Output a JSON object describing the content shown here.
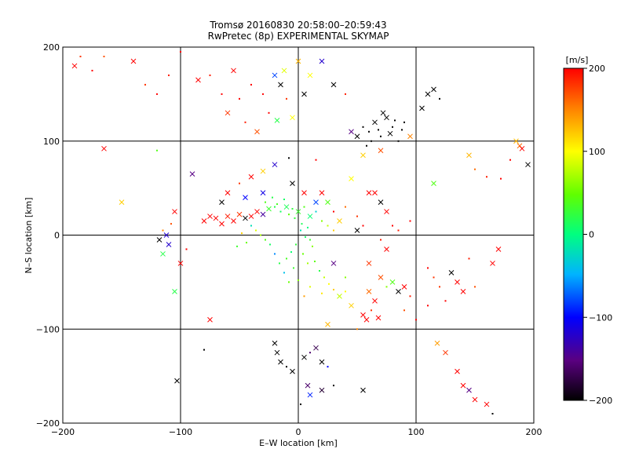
{
  "chart_data": {
    "type": "scatter",
    "title": "Tromsø 20160830 20:58:00–20:59:43",
    "subtitle": "RwPretec (8p) EXPERIMENTAL SKYMAP",
    "xlabel": "E–W location [km]",
    "ylabel": "N–S location [km]",
    "xlim": [
      -200,
      200
    ],
    "ylim": [
      -200,
      200
    ],
    "x_ticks": [
      -200,
      -100,
      0,
      100,
      200
    ],
    "y_ticks": [
      -200,
      -100,
      0,
      100,
      200
    ],
    "x_tick_labels": [
      "−200",
      "−100",
      "0",
      "100",
      "200"
    ],
    "y_tick_labels": [
      "−200",
      "−100",
      "0",
      "100",
      "200"
    ],
    "grid": true,
    "colorbar": {
      "label": "[m/s]",
      "min": -200,
      "max": 200,
      "ticks": [
        -200,
        -100,
        0,
        100,
        200
      ],
      "tick_labels": [
        "−200",
        "−100",
        "0",
        "100",
        "200"
      ],
      "colormap": "rainbow"
    },
    "marker_styles": [
      "dot",
      "x"
    ],
    "points": [
      [
        -190,
        180,
        200,
        "x"
      ],
      [
        -185,
        190,
        180,
        "dot"
      ],
      [
        -175,
        175,
        200,
        "dot"
      ],
      [
        -165,
        190,
        170,
        "dot"
      ],
      [
        -140,
        185,
        200,
        "x"
      ],
      [
        -130,
        160,
        180,
        "dot"
      ],
      [
        -120,
        150,
        200,
        "dot"
      ],
      [
        -110,
        170,
        190,
        "dot"
      ],
      [
        -100,
        195,
        200,
        "dot"
      ],
      [
        -85,
        165,
        200,
        "x"
      ],
      [
        -75,
        170,
        190,
        "dot"
      ],
      [
        -65,
        150,
        200,
        "dot"
      ],
      [
        -60,
        130,
        180,
        "x"
      ],
      [
        -55,
        175,
        200,
        "x"
      ],
      [
        -50,
        145,
        200,
        "dot"
      ],
      [
        -45,
        120,
        190,
        "dot"
      ],
      [
        -40,
        160,
        200,
        "dot"
      ],
      [
        -35,
        110,
        170,
        "x"
      ],
      [
        -30,
        150,
        200,
        "dot"
      ],
      [
        -25,
        130,
        200,
        "dot"
      ],
      [
        -20,
        170,
        -80,
        "x"
      ],
      [
        -15,
        160,
        -200,
        "x"
      ],
      [
        -10,
        145,
        180,
        "dot"
      ],
      [
        -5,
        125,
        100,
        "x"
      ],
      [
        -18,
        122,
        20,
        "x"
      ],
      [
        -12,
        175,
        90,
        "x"
      ],
      [
        0,
        185,
        130,
        "x"
      ],
      [
        10,
        170,
        100,
        "x"
      ],
      [
        5,
        150,
        -200,
        "x"
      ],
      [
        20,
        185,
        -120,
        "x"
      ],
      [
        30,
        160,
        -200,
        "x"
      ],
      [
        40,
        150,
        190,
        "dot"
      ],
      [
        55,
        115,
        -200,
        "dot"
      ],
      [
        60,
        110,
        -200,
        "dot"
      ],
      [
        65,
        120,
        -200,
        "x"
      ],
      [
        70,
        105,
        -200,
        "dot"
      ],
      [
        75,
        125,
        -200,
        "x"
      ],
      [
        80,
        115,
        -200,
        "dot"
      ],
      [
        85,
        100,
        -200,
        "dot"
      ],
      [
        58,
        95,
        -200,
        "dot"
      ],
      [
        72,
        130,
        -200,
        "x"
      ],
      [
        90,
        120,
        -200,
        "dot"
      ],
      [
        50,
        105,
        -200,
        "x"
      ],
      [
        62,
        100,
        -200,
        "dot"
      ],
      [
        68,
        112,
        -200,
        "dot"
      ],
      [
        78,
        108,
        -200,
        "x"
      ],
      [
        82,
        122,
        -200,
        "dot"
      ],
      [
        88,
        112,
        -200,
        "dot"
      ],
      [
        105,
        135,
        -200,
        "x"
      ],
      [
        110,
        150,
        -200,
        "x"
      ],
      [
        115,
        155,
        -200,
        "x"
      ],
      [
        120,
        145,
        -200,
        "dot"
      ],
      [
        95,
        105,
        150,
        "x"
      ],
      [
        45,
        110,
        -150,
        "x"
      ],
      [
        55,
        85,
        120,
        "x"
      ],
      [
        70,
        90,
        170,
        "x"
      ],
      [
        -165,
        92,
        200,
        "x"
      ],
      [
        -120,
        90,
        40,
        "dot"
      ],
      [
        -150,
        35,
        120,
        "x"
      ],
      [
        -105,
        25,
        200,
        "x"
      ],
      [
        -90,
        65,
        -150,
        "x"
      ],
      [
        -80,
        15,
        200,
        "x"
      ],
      [
        -75,
        20,
        200,
        "x"
      ],
      [
        -70,
        18,
        200,
        "x"
      ],
      [
        -65,
        12,
        200,
        "x"
      ],
      [
        -60,
        20,
        190,
        "x"
      ],
      [
        -55,
        15,
        200,
        "x"
      ],
      [
        -50,
        22,
        180,
        "x"
      ],
      [
        -45,
        18,
        -200,
        "x"
      ],
      [
        -40,
        20,
        200,
        "x"
      ],
      [
        -35,
        25,
        200,
        "x"
      ],
      [
        -30,
        22,
        -140,
        "x"
      ],
      [
        -25,
        28,
        30,
        "x"
      ],
      [
        -20,
        30,
        20,
        "dot"
      ],
      [
        -15,
        25,
        10,
        "dot"
      ],
      [
        -10,
        30,
        15,
        "x"
      ],
      [
        -5,
        28,
        25,
        "dot"
      ],
      [
        0,
        25,
        30,
        "x"
      ],
      [
        5,
        30,
        40,
        "dot"
      ],
      [
        10,
        20,
        5,
        "x"
      ],
      [
        15,
        25,
        -30,
        "dot"
      ],
      [
        20,
        15,
        60,
        "dot"
      ],
      [
        25,
        10,
        80,
        "dot"
      ],
      [
        30,
        5,
        120,
        "dot"
      ],
      [
        -28,
        35,
        40,
        "dot"
      ],
      [
        -22,
        40,
        20,
        "dot"
      ],
      [
        -18,
        33,
        35,
        "dot"
      ],
      [
        -12,
        38,
        10,
        "dot"
      ],
      [
        -8,
        22,
        45,
        "dot"
      ],
      [
        -3,
        18,
        25,
        "dot"
      ],
      [
        3,
        12,
        15,
        "dot"
      ],
      [
        8,
        8,
        0,
        "dot"
      ],
      [
        2,
        5,
        -20,
        "dot"
      ],
      [
        6,
        -2,
        10,
        "dot"
      ],
      [
        10,
        -5,
        30,
        "dot"
      ],
      [
        12,
        -12,
        60,
        "dot"
      ],
      [
        -2,
        -10,
        25,
        "dot"
      ],
      [
        -6,
        -18,
        5,
        "dot"
      ],
      [
        -10,
        -25,
        35,
        "dot"
      ],
      [
        4,
        -20,
        50,
        "dot"
      ],
      [
        8,
        -30,
        70,
        "dot"
      ],
      [
        14,
        -28,
        45,
        "dot"
      ],
      [
        18,
        -38,
        20,
        "dot"
      ],
      [
        22,
        -45,
        80,
        "dot"
      ],
      [
        26,
        -52,
        100,
        "dot"
      ],
      [
        30,
        -58,
        120,
        "dot"
      ],
      [
        20,
        -62,
        110,
        "dot"
      ],
      [
        10,
        -55,
        90,
        "dot"
      ],
      [
        5,
        -65,
        140,
        "dot"
      ],
      [
        0,
        -48,
        60,
        "dot"
      ],
      [
        -4,
        -35,
        30,
        "dot"
      ],
      [
        -8,
        -50,
        50,
        "dot"
      ],
      [
        -12,
        -40,
        -40,
        "dot"
      ],
      [
        -16,
        -30,
        20,
        "dot"
      ],
      [
        -20,
        -20,
        -60,
        "dot"
      ],
      [
        -24,
        -10,
        10,
        "dot"
      ],
      [
        -28,
        -5,
        40,
        "dot"
      ],
      [
        -32,
        0,
        70,
        "dot"
      ],
      [
        -36,
        5,
        90,
        "dot"
      ],
      [
        -40,
        10,
        -20,
        "dot"
      ],
      [
        -44,
        -8,
        50,
        "dot"
      ],
      [
        -48,
        2,
        120,
        "dot"
      ],
      [
        -52,
        -12,
        30,
        "dot"
      ],
      [
        15,
        35,
        -80,
        "x"
      ],
      [
        20,
        45,
        200,
        "x"
      ],
      [
        30,
        25,
        200,
        "dot"
      ],
      [
        40,
        30,
        160,
        "dot"
      ],
      [
        50,
        20,
        180,
        "dot"
      ],
      [
        55,
        10,
        200,
        "dot"
      ],
      [
        60,
        45,
        200,
        "x"
      ],
      [
        65,
        45,
        200,
        "x"
      ],
      [
        70,
        35,
        -200,
        "x"
      ],
      [
        75,
        25,
        200,
        "x"
      ],
      [
        80,
        10,
        200,
        "dot"
      ],
      [
        85,
        5,
        190,
        "dot"
      ],
      [
        25,
        35,
        40,
        "x"
      ],
      [
        35,
        15,
        120,
        "x"
      ],
      [
        45,
        60,
        100,
        "x"
      ],
      [
        -5,
        55,
        -200,
        "x"
      ],
      [
        5,
        45,
        200,
        "x"
      ],
      [
        -30,
        45,
        -110,
        "x"
      ],
      [
        -45,
        40,
        -100,
        "x"
      ],
      [
        -110,
        -10,
        -120,
        "x"
      ],
      [
        -115,
        -20,
        20,
        "x"
      ],
      [
        -105,
        -60,
        20,
        "x"
      ],
      [
        -112,
        0,
        -120,
        "x"
      ],
      [
        -118,
        -5,
        -200,
        "x"
      ],
      [
        -100,
        -30,
        200,
        "x"
      ],
      [
        -115,
        5,
        150,
        "dot"
      ],
      [
        -108,
        12,
        170,
        "dot"
      ],
      [
        -95,
        -15,
        200,
        "dot"
      ],
      [
        -75,
        -90,
        200,
        "x"
      ],
      [
        -80,
        -122,
        -200,
        "dot"
      ],
      [
        -103,
        -155,
        -200,
        "x"
      ],
      [
        -20,
        -115,
        -200,
        "x"
      ],
      [
        -18,
        -125,
        -200,
        "x"
      ],
      [
        -15,
        -135,
        -200,
        "x"
      ],
      [
        -10,
        -140,
        -200,
        "dot"
      ],
      [
        -5,
        -145,
        -200,
        "x"
      ],
      [
        5,
        -130,
        -200,
        "x"
      ],
      [
        10,
        -125,
        -160,
        "dot"
      ],
      [
        15,
        -120,
        -170,
        "x"
      ],
      [
        20,
        -135,
        -200,
        "x"
      ],
      [
        25,
        -140,
        -100,
        "dot"
      ],
      [
        8,
        -160,
        -160,
        "x"
      ],
      [
        20,
        -165,
        -180,
        "x"
      ],
      [
        2,
        -180,
        -200,
        "dot"
      ],
      [
        30,
        -160,
        -200,
        "dot"
      ],
      [
        55,
        -165,
        -200,
        "x"
      ],
      [
        10,
        -170,
        -90,
        "x"
      ],
      [
        60,
        -60,
        160,
        "x"
      ],
      [
        65,
        -70,
        200,
        "x"
      ],
      [
        70,
        -45,
        170,
        "x"
      ],
      [
        75,
        -55,
        60,
        "dot"
      ],
      [
        80,
        -50,
        40,
        "x"
      ],
      [
        85,
        -60,
        -200,
        "x"
      ],
      [
        90,
        -55,
        200,
        "x"
      ],
      [
        95,
        -65,
        190,
        "dot"
      ],
      [
        55,
        -85,
        200,
        "x"
      ],
      [
        58,
        -90,
        200,
        "x"
      ],
      [
        62,
        -80,
        180,
        "dot"
      ],
      [
        68,
        -88,
        200,
        "x"
      ],
      [
        45,
        -75,
        120,
        "x"
      ],
      [
        40,
        -60,
        100,
        "dot"
      ],
      [
        50,
        -100,
        150,
        "dot"
      ],
      [
        25,
        -95,
        130,
        "x"
      ],
      [
        35,
        -65,
        80,
        "x"
      ],
      [
        40,
        -45,
        60,
        "dot"
      ],
      [
        30,
        -30,
        -150,
        "x"
      ],
      [
        50,
        5,
        -200,
        "x"
      ],
      [
        70,
        -5,
        190,
        "dot"
      ],
      [
        75,
        -15,
        200,
        "x"
      ],
      [
        60,
        -30,
        180,
        "x"
      ],
      [
        110,
        -35,
        200,
        "dot"
      ],
      [
        115,
        -45,
        180,
        "dot"
      ],
      [
        130,
        -40,
        -200,
        "x"
      ],
      [
        135,
        -50,
        200,
        "x"
      ],
      [
        140,
        -60,
        200,
        "x"
      ],
      [
        150,
        -55,
        170,
        "dot"
      ],
      [
        165,
        -30,
        200,
        "x"
      ],
      [
        170,
        -15,
        200,
        "x"
      ],
      [
        145,
        -25,
        190,
        "dot"
      ],
      [
        120,
        -55,
        180,
        "dot"
      ],
      [
        125,
        -70,
        200,
        "dot"
      ],
      [
        118,
        -115,
        140,
        "x"
      ],
      [
        125,
        -125,
        180,
        "x"
      ],
      [
        135,
        -145,
        200,
        "x"
      ],
      [
        140,
        -160,
        200,
        "x"
      ],
      [
        145,
        -165,
        -150,
        "x"
      ],
      [
        150,
        -175,
        200,
        "x"
      ],
      [
        160,
        -180,
        200,
        "x"
      ],
      [
        165,
        -190,
        -200,
        "dot"
      ],
      [
        100,
        -90,
        200,
        "dot"
      ],
      [
        90,
        -80,
        170,
        "dot"
      ],
      [
        110,
        -75,
        200,
        "dot"
      ],
      [
        95,
        15,
        200,
        "dot"
      ],
      [
        115,
        55,
        40,
        "x"
      ],
      [
        145,
        85,
        130,
        "x"
      ],
      [
        150,
        70,
        160,
        "dot"
      ],
      [
        160,
        62,
        190,
        "dot"
      ],
      [
        185,
        100,
        130,
        "x"
      ],
      [
        188,
        95,
        160,
        "x"
      ],
      [
        190,
        92,
        200,
        "x"
      ],
      [
        195,
        75,
        -200,
        "x"
      ],
      [
        180,
        80,
        200,
        "dot"
      ],
      [
        172,
        60,
        200,
        "dot"
      ],
      [
        -60,
        45,
        200,
        "x"
      ],
      [
        -65,
        35,
        -200,
        "x"
      ],
      [
        -50,
        55,
        180,
        "dot"
      ],
      [
        -40,
        62,
        200,
        "x"
      ],
      [
        -30,
        68,
        120,
        "x"
      ],
      [
        -20,
        75,
        -120,
        "x"
      ],
      [
        -8,
        82,
        -200,
        "dot"
      ],
      [
        15,
        80,
        200,
        "dot"
      ]
    ]
  }
}
